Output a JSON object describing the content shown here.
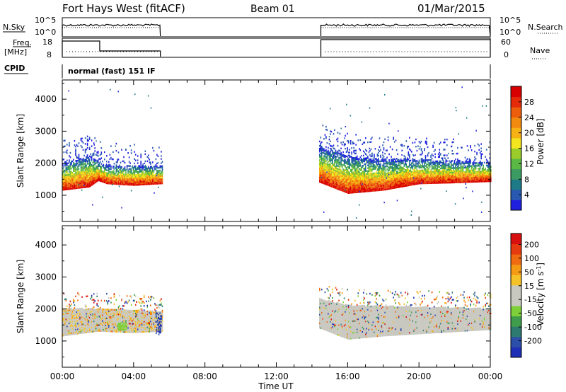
{
  "header": {
    "station": "Fort Hays West (fitACF)",
    "beam": "Beam 01",
    "date": "01/Mar/2015"
  },
  "status_panels": {
    "left_labels": {
      "nsky": "N.Sky",
      "freq": "Freq.",
      "freq_unit": "[MHz]",
      "cpid": "CPID"
    },
    "right_labels": {
      "nsearch": "N.Search",
      "nave": "Nave"
    },
    "noise_ticks_left": [
      "10^5",
      "10^0"
    ],
    "noise_ticks_right": [
      "10^5",
      "10^0"
    ],
    "freq_ticks": [
      "18",
      "8"
    ],
    "nave_ticks": [
      "60",
      "0"
    ],
    "cpid_text": "normal (fast) 151 IF",
    "segments_hours": [
      [
        0.0,
        5.5
      ],
      [
        14.5,
        24.0
      ]
    ]
  },
  "x_axis": {
    "label": "Time UT",
    "ticks": [
      "00:00",
      "04:00",
      "08:00",
      "12:00",
      "16:00",
      "20:00",
      "00:00"
    ],
    "range_hours": [
      0,
      24
    ]
  },
  "chart_data": [
    {
      "type": "heatmap",
      "name": "Power",
      "ylabel": "Slant Range [km]",
      "yticks": [
        1000,
        2000,
        3000,
        4000
      ],
      "ylim": [
        180,
        4600
      ],
      "xlim_hours": [
        0,
        24
      ],
      "colorbar": {
        "label": "Power [dB]",
        "ticks": [
          "4",
          "8",
          "12",
          "16",
          "20",
          "24",
          "28"
        ],
        "colors": [
          "#1f1fe0",
          "#2858b0",
          "#1e7a86",
          "#3c9a63",
          "#5bb844",
          "#9acb2a",
          "#f3e51f",
          "#f6b214",
          "#f28a10",
          "#ec5d0c",
          "#e52a0a",
          "#d80000"
        ]
      },
      "echo_bands": [
        {
          "t_start": 0.0,
          "t_end": 5.6,
          "lower_km": [
            [
              0.0,
              1150
            ],
            [
              1.5,
              1250
            ],
            [
              2.0,
              1450
            ],
            [
              2.5,
              1350
            ],
            [
              4.0,
              1300
            ],
            [
              5.5,
              1350
            ]
          ],
          "upper_km": [
            [
              0.0,
              2000
            ],
            [
              1.5,
              2200
            ],
            [
              2.5,
              1900
            ],
            [
              5.5,
              1900
            ]
          ]
        },
        {
          "t_start": 14.4,
          "t_end": 24.0,
          "lower_km": [
            [
              14.4,
              1400
            ],
            [
              16.0,
              1050
            ],
            [
              18.0,
              1150
            ],
            [
              20.0,
              1350
            ],
            [
              22.0,
              1380
            ],
            [
              24.0,
              1420
            ]
          ],
          "upper_km": [
            [
              14.4,
              2500
            ],
            [
              16.0,
              2200
            ],
            [
              18.0,
              2100
            ],
            [
              20.0,
              2100
            ],
            [
              24.0,
              2000
            ]
          ]
        }
      ]
    },
    {
      "type": "heatmap",
      "name": "Velocity",
      "ylabel": "Slant Range [km]",
      "yticks": [
        1000,
        2000,
        3000,
        4000
      ],
      "ylim": [
        180,
        4600
      ],
      "xlim_hours": [
        0,
        24
      ],
      "colorbar": {
        "label": "Velocity [m s-1]",
        "ticks": [
          "200",
          "100",
          "50",
          "15",
          "-15",
          "-50",
          "-100",
          "-200"
        ],
        "colors": [
          "#1e2fb5",
          "#2b4fa8",
          "#2d7a70",
          "#3f9c4c",
          "#7dd03a",
          "#c8c8c0",
          "#c8c8c0",
          "#f5c22a",
          "#f59a14",
          "#f06a10",
          "#e63a10",
          "#d81010"
        ]
      },
      "ground_scatter_color": "#c8c8c0",
      "echo_bands": [
        {
          "t_start": 0.0,
          "t_end": 5.6,
          "lower_km": [
            [
              0.0,
              1150
            ],
            [
              2.0,
              1300
            ],
            [
              4.0,
              1250
            ],
            [
              5.5,
              1300
            ]
          ],
          "upper_km": [
            [
              0.0,
              2000
            ],
            [
              2.5,
              2000
            ],
            [
              5.5,
              1900
            ]
          ]
        },
        {
          "t_start": 14.4,
          "t_end": 24.0,
          "lower_km": [
            [
              14.4,
              1400
            ],
            [
              16.0,
              1050
            ],
            [
              18.0,
              1150
            ],
            [
              24.0,
              1350
            ]
          ],
          "upper_km": [
            [
              14.4,
              2300
            ],
            [
              16.0,
              2100
            ],
            [
              24.0,
              2000
            ]
          ]
        }
      ]
    }
  ]
}
